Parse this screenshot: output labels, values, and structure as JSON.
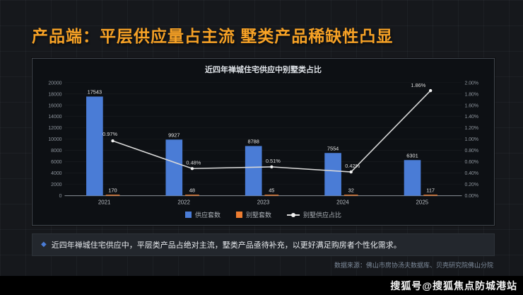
{
  "slide": {
    "title": "产品端：平层供应量占主流 墅类产品稀缺性凸显",
    "note_bullet": "◆",
    "note": "近四年禅城住宅供应中，平层类产品占绝对主流，墅类产品亟待补充，以更好满足购房者个性化需求。",
    "source": "数据来源：佛山市房协汤夫数据库、贝壳研究院佛山分院",
    "watermark": "搜狐号@搜狐焦点防城港站"
  },
  "chart_data": {
    "type": "bar",
    "subtype": "combo-bar-line",
    "title": "近四年禅城住宅供应中别墅类占比",
    "categories": [
      "2021",
      "2022",
      "2023",
      "2024",
      "2025"
    ],
    "series": [
      {
        "name": "供应套数",
        "type": "bar",
        "axis": "left",
        "color": "#4a7cd6",
        "values": [
          17543,
          9927,
          8788,
          7554,
          6301
        ]
      },
      {
        "name": "别墅套数",
        "type": "bar",
        "axis": "left",
        "color": "#ed7d31",
        "values": [
          170,
          48,
          45,
          32,
          117
        ]
      },
      {
        "name": "别墅供应占比",
        "type": "line",
        "axis": "right",
        "color": "#d8d8d8",
        "values": [
          0.97,
          0.48,
          0.51,
          0.42,
          1.86
        ],
        "labels": [
          "0.97%",
          "0.48%",
          "0.51%",
          "0.42%",
          "1.86%"
        ]
      }
    ],
    "left_axis": {
      "min": 0,
      "max": 20000,
      "step": 2000
    },
    "right_axis": {
      "min": 0,
      "max": 2.0,
      "step": 0.2,
      "format": "percent2"
    },
    "legend_position": "bottom",
    "grid": true
  }
}
